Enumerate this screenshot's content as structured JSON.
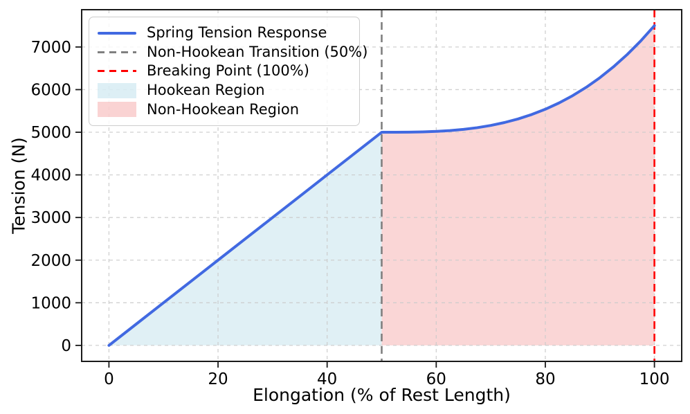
{
  "chart_data": {
    "type": "line",
    "title": "",
    "xlabel": "Elongation (% of Rest Length)",
    "ylabel": "Tension (N)",
    "xlim": [
      -5,
      105
    ],
    "ylim": [
      -375,
      7875
    ],
    "x_ticks": [
      0,
      20,
      40,
      60,
      80,
      100
    ],
    "y_ticks": [
      0,
      1000,
      2000,
      3000,
      4000,
      5000,
      6000,
      7000
    ],
    "grid": true,
    "legend_position": "upper-left",
    "series": [
      {
        "name": "Spring Tension Response",
        "color": "#4169E1",
        "style": "solid",
        "x": [
          0,
          5,
          10,
          15,
          20,
          25,
          30,
          35,
          40,
          45,
          50,
          52.5,
          55,
          57.5,
          60,
          62.5,
          65,
          67.5,
          70,
          72.5,
          75,
          77.5,
          80,
          82.5,
          85,
          87.5,
          90,
          92.5,
          95,
          97.5,
          100
        ],
        "y": [
          0,
          500,
          1000,
          1500,
          2000,
          2500,
          3000,
          3500,
          4000,
          4500,
          5000,
          5000.3,
          5002.5,
          5008.4,
          5020,
          5039.1,
          5067.5,
          5107.2,
          5160,
          5227.8,
          5312.5,
          5416,
          5540,
          5686.6,
          5857.5,
          6054.7,
          6280,
          6535.3,
          6822.5,
          7143.4,
          7500
        ]
      }
    ],
    "vlines": [
      {
        "name": "Non-Hookean Transition (50%)",
        "x": 50,
        "color": "#7f7f7f",
        "style": "dashed"
      },
      {
        "name": "Breaking Point (100%)",
        "x": 100,
        "color": "#ff0000",
        "style": "dashed"
      }
    ],
    "regions": [
      {
        "name": "Hookean Region",
        "x_range": [
          0,
          50
        ],
        "baseline": 0,
        "color": "#ADD8E6",
        "alpha": 0.38
      },
      {
        "name": "Non-Hookean Region",
        "x_range": [
          50,
          100
        ],
        "baseline": 0,
        "color": "#F08080",
        "alpha": 0.32
      }
    ],
    "legend": {
      "items": [
        {
          "label": "Spring Tension Response",
          "type": "line-solid",
          "color": "#4169E1"
        },
        {
          "label": "Non-Hookean Transition (50%)",
          "type": "line-dashed",
          "color": "#808080"
        },
        {
          "label": "Breaking Point (100%)",
          "type": "line-dashed",
          "color": "#ff0000"
        },
        {
          "label": "Hookean Region",
          "type": "patch",
          "color": "#ADD8E6",
          "alpha": 0.42
        },
        {
          "label": "Non-Hookean Region",
          "type": "patch",
          "color": "#F08080",
          "alpha": 0.35
        }
      ]
    },
    "colors": {
      "grid": "#cccccc",
      "spine": "#1a1a1a",
      "tick_text": "#000000",
      "background": "#ffffff"
    }
  }
}
